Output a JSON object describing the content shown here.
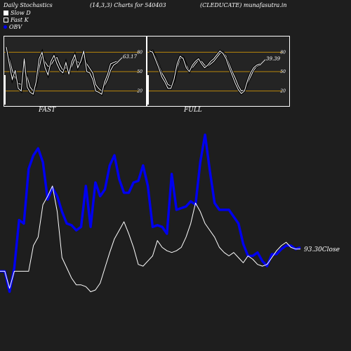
{
  "header": {
    "left": "Daily Stochastics",
    "middle": "(14,3,3) Charts for 540403",
    "right": "(CLEDUCATE) munafasutra.in"
  },
  "legend": {
    "slow_d": "Slow  D",
    "fast_k": "Fast K",
    "obv": "OBV"
  },
  "colors": {
    "background": "#1e1e1e",
    "panel_bg": "#242424",
    "band": "#b8860b",
    "obv": "#0000ee",
    "price": "#ffffff"
  },
  "chart_data": [
    {
      "type": "line",
      "title": "FAST",
      "ylim": [
        0,
        100
      ],
      "y_ticks": [
        "80",
        "50",
        "20"
      ],
      "band_levels": [
        80,
        50,
        20
      ],
      "last_value_label": "63.17",
      "series": [
        {
          "values": [
            82,
            70,
            52,
            40,
            32,
            30,
            52,
            42,
            26,
            20,
            28,
            55,
            76,
            65,
            58,
            60,
            68,
            72,
            60,
            52,
            56,
            50,
            58,
            70,
            65,
            63,
            76,
            62,
            55,
            48,
            30,
            24,
            20,
            28,
            38,
            52,
            60,
            63
          ]
        },
        {
          "values": [
            88,
            62,
            38,
            52,
            24,
            20,
            70,
            26,
            18,
            15,
            34,
            70,
            80,
            56,
            45,
            66,
            75,
            62,
            52,
            48,
            64,
            46,
            66,
            76,
            56,
            66,
            82,
            50,
            48,
            38,
            20,
            18,
            15,
            34,
            46,
            62,
            64,
            66
          ]
        }
      ]
    },
    {
      "type": "line",
      "title": "FULL",
      "ylim": [
        0,
        100
      ],
      "y_ticks": [
        "80",
        "50",
        "20"
      ],
      "band_levels": [
        80,
        50,
        20
      ],
      "last_value_label": "39.39",
      "series": [
        {
          "values": [
            80,
            82,
            72,
            60,
            48,
            40,
            30,
            28,
            35,
            55,
            70,
            72,
            60,
            52,
            56,
            62,
            68,
            66,
            60,
            58,
            62,
            66,
            72,
            78,
            80,
            74,
            62,
            50,
            40,
            28,
            20,
            22,
            32,
            42,
            52,
            58,
            60
          ]
        },
        {
          "values": [
            82,
            80,
            68,
            56,
            42,
            34,
            24,
            24,
            38,
            62,
            74,
            70,
            56,
            50,
            60,
            66,
            70,
            62,
            56,
            60,
            66,
            70,
            76,
            82,
            78,
            70,
            56,
            44,
            32,
            22,
            16,
            20,
            36,
            48,
            56,
            60,
            62
          ]
        }
      ]
    },
    {
      "type": "line",
      "ylim": [
        0,
        100
      ],
      "last_value_label": "93.30Close",
      "series": [
        {
          "name": "OBV",
          "values": [
            20,
            20,
            8,
            22,
            50,
            48,
            80,
            88,
            92,
            84,
            62,
            69,
            64,
            55,
            48,
            47,
            44,
            46,
            70,
            46,
            72,
            64,
            68,
            82,
            88,
            74,
            66,
            66,
            72,
            73,
            82,
            70,
            46,
            47,
            46,
            42,
            77,
            56,
            57,
            58,
            61,
            59,
            84,
            100,
            79,
            60,
            56,
            56,
            56,
            52,
            48,
            36,
            29,
            29,
            31,
            26,
            23,
            30,
            30,
            33,
            35,
            35,
            33,
            34
          ]
        },
        {
          "values": [
            20,
            20,
            10,
            20,
            20,
            20,
            20,
            35,
            40,
            59,
            64,
            70,
            55,
            28,
            22,
            16,
            12,
            12,
            11,
            8,
            9,
            13,
            22,
            31,
            39,
            44,
            49,
            42,
            34,
            24,
            23,
            26,
            29,
            38,
            34,
            32,
            31,
            32,
            34,
            40,
            48,
            60,
            55,
            48,
            44,
            40,
            34,
            31,
            29,
            31,
            28,
            25,
            29,
            27,
            24,
            23,
            24,
            28,
            32,
            35,
            37,
            34,
            33,
            33
          ]
        }
      ]
    }
  ]
}
